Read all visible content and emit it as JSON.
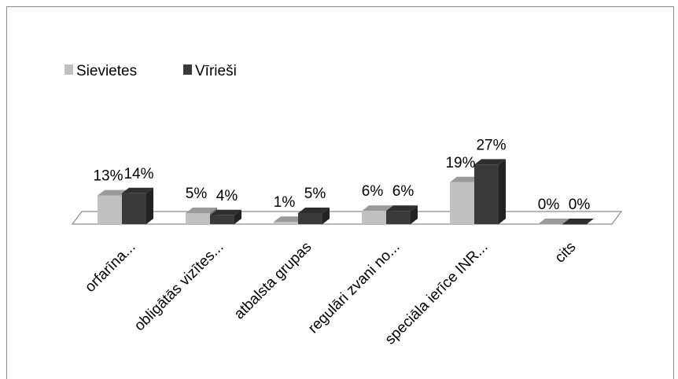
{
  "chart_data": {
    "type": "bar",
    "categories": [
      "orfarīna...",
      "obligātās vizītes...",
      "atbalsta grupas",
      "regulāri zvani no...",
      "speciāla ierīce INR...",
      "cits"
    ],
    "series": [
      {
        "name": "Sievietes",
        "values": [
          13,
          5,
          1,
          6,
          19,
          0
        ],
        "labels": [
          "13%",
          "5%",
          "1%",
          "6%",
          "19%",
          "0%"
        ],
        "color": "#c0c0c0"
      },
      {
        "name": "Vīrieši",
        "values": [
          14,
          4,
          5,
          6,
          27,
          0
        ],
        "labels": [
          "14%",
          "4%",
          "5%",
          "6%",
          "27%",
          "0%"
        ],
        "color": "#3a3a3a"
      }
    ],
    "legend_position": "top-left",
    "style": "3d-column",
    "grid": false
  }
}
